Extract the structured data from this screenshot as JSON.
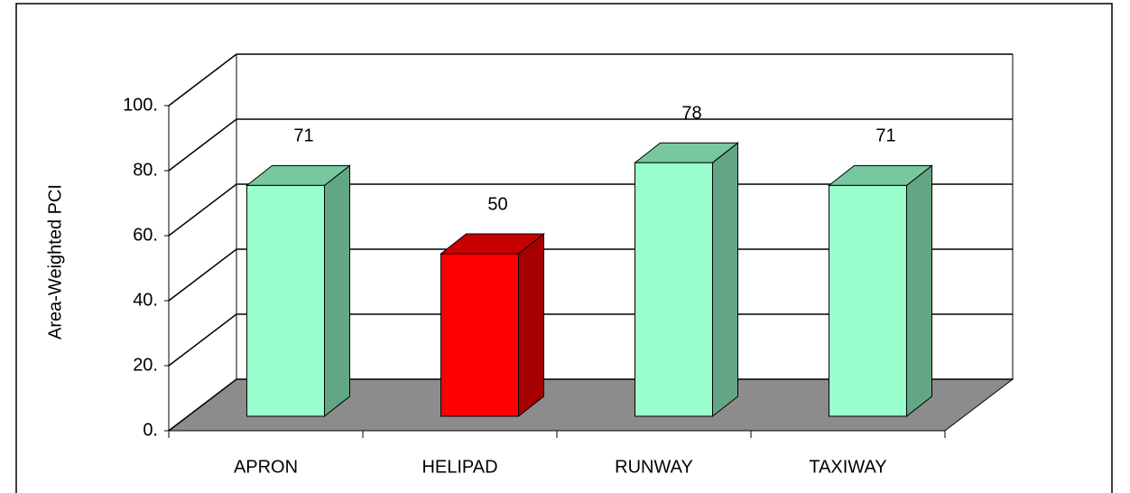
{
  "chart_data": {
    "type": "bar3d",
    "y_label": "Area-Weighted PCI",
    "categories": [
      "APRON",
      "HELIPAD",
      "RUNWAY",
      "TAXIWAY"
    ],
    "values": [
      71,
      50,
      78,
      71
    ],
    "colors": [
      "#99ffcc",
      "#ff0000",
      "#99ffcc",
      "#99ffcc"
    ],
    "ylim": [
      0,
      100
    ],
    "yticks": [
      {
        "value": 0,
        "label": "0."
      },
      {
        "value": 20,
        "label": "20."
      },
      {
        "value": 40,
        "label": "40."
      },
      {
        "value": 60,
        "label": "60."
      },
      {
        "value": 80,
        "label": "80."
      },
      {
        "value": 100,
        "label": "100."
      }
    ],
    "grid": true
  }
}
